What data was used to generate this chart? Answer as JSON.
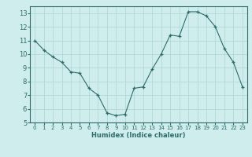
{
  "x": [
    0,
    1,
    2,
    3,
    4,
    5,
    6,
    7,
    8,
    9,
    10,
    11,
    12,
    13,
    14,
    15,
    16,
    17,
    18,
    19,
    20,
    21,
    22,
    23
  ],
  "y": [
    11.0,
    10.3,
    9.8,
    9.4,
    8.7,
    8.6,
    7.5,
    7.0,
    5.7,
    5.5,
    5.6,
    7.5,
    7.6,
    8.9,
    10.0,
    11.4,
    11.3,
    13.1,
    13.1,
    12.8,
    12.0,
    10.4,
    9.4,
    7.6
  ],
  "line_color": "#2e6b6b",
  "marker_color": "#2e6b6b",
  "bg_color": "#d0eded",
  "grid_color": "#aad4d4",
  "xlabel": "Humidex (Indice chaleur)",
  "xlim": [
    -0.5,
    23.5
  ],
  "ylim": [
    5,
    13.5
  ],
  "yticks": [
    5,
    6,
    7,
    8,
    9,
    10,
    11,
    12,
    13
  ],
  "xticks": [
    0,
    1,
    2,
    3,
    4,
    5,
    6,
    7,
    8,
    9,
    10,
    11,
    12,
    13,
    14,
    15,
    16,
    17,
    18,
    19,
    20,
    21,
    22,
    23
  ]
}
